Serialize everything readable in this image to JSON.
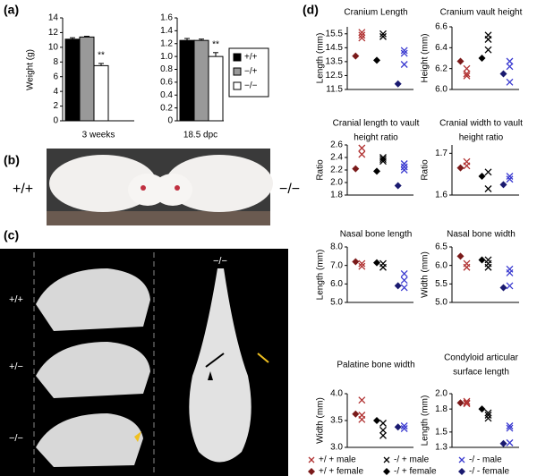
{
  "panel_labels": [
    "(a)",
    "(b)",
    "(c)",
    "(d)"
  ],
  "weight": {
    "legend": [
      {
        "name": "+/+",
        "color": "#000000"
      },
      {
        "name": "−/+",
        "color": "#999999"
      },
      {
        "name": "−/−",
        "color": "#ffffff"
      }
    ],
    "ylabel": "Weight (g)",
    "charts": [
      {
        "type": "bar",
        "xlabel": "3 weeks",
        "values": [
          11.1,
          11.4,
          7.5
        ],
        "errors": [
          0.2,
          0.1,
          0.3
        ],
        "annotation": "**",
        "ylim": [
          0,
          14
        ],
        "yticks": [
          0,
          2,
          4,
          6,
          8,
          10,
          12,
          14
        ]
      },
      {
        "type": "bar",
        "xlabel": "18.5 dpc",
        "values": [
          1.25,
          1.25,
          1.0
        ],
        "errors": [
          0.03,
          0.02,
          0.06
        ],
        "annotation": "**",
        "ylim": [
          0,
          1.6
        ],
        "yticks": [
          0,
          0.2,
          0.4,
          0.6,
          0.8,
          {
            "value": 1,
            "label": "1.0"
          },
          1.2,
          1.4,
          1.6
        ]
      }
    ]
  },
  "mice_photo": {
    "left_label": "+/+",
    "right_label": "−/−"
  },
  "skull_photo": {
    "labels": [
      "+/+",
      "+/−",
      "−/−"
    ],
    "top_label": "−/−"
  },
  "cranial": {
    "legend": [
      {
        "name": "+/ + male",
        "color": "#b03030",
        "marker": "cross"
      },
      {
        "name": "-/ + male",
        "color": "#000000",
        "marker": "cross"
      },
      {
        "name": "-/ - male",
        "color": "#3a3ad0",
        "marker": "cross"
      },
      {
        "name": "+/ + female",
        "color": "#7a1a1a",
        "marker": "diamond"
      },
      {
        "name": "-/ + female",
        "color": "#000000",
        "marker": "diamond"
      },
      {
        "name": "-/ - female",
        "color": "#1a1a70",
        "marker": "diamond"
      }
    ],
    "charts": [
      {
        "type": "scatter",
        "title": [
          "Cranium Length"
        ],
        "ylabel": "Length (mm)",
        "ylim": [
          11.5,
          16.0
        ],
        "yticks": [
          11.5,
          12.5,
          13.5,
          14.5,
          15.5
        ],
        "series": [
          {
            "values": [
              15.6,
              15.2,
              15.4
            ]
          },
          {
            "values": [
              15.5,
              15.3
            ]
          },
          {
            "values": [
              14.3,
              14.1,
              13.3
            ]
          },
          {
            "values": [
              13.9
            ]
          },
          {
            "values": [
              13.6
            ]
          },
          {
            "values": [
              11.9
            ]
          }
        ]
      },
      {
        "type": "scatter",
        "title": [
          "Cranium vault height"
        ],
        "ylabel": "Height (mm)",
        "ylim": [
          6.0,
          6.6
        ],
        "yticks": [
          {
            "value": 6,
            "label": "6.0"
          },
          6.2,
          6.4,
          6.6
        ],
        "series": [
          {
            "values": [
              6.2,
              6.15,
              6.13
            ]
          },
          {
            "values": [
              6.52,
              6.48,
              6.38
            ]
          },
          {
            "values": [
              6.27,
              6.22,
              6.07
            ]
          },
          {
            "values": [
              6.27
            ]
          },
          {
            "values": [
              6.3
            ]
          },
          {
            "values": [
              6.15
            ]
          }
        ]
      },
      {
        "type": "scatter",
        "title": [
          "Cranial length to vault",
          "height ratio"
        ],
        "ylabel": "Ratio",
        "ylim": [
          1.8,
          2.6
        ],
        "yticks": [
          1.8,
          {
            "value": 2,
            "label": "2.0"
          },
          2.2,
          2.4,
          2.6
        ],
        "series": [
          {
            "values": [
              2.55,
              2.45
            ]
          },
          {
            "values": [
              2.4,
              2.37,
              2.34
            ]
          },
          {
            "values": [
              2.3,
              2.25,
              2.2
            ]
          },
          {
            "values": [
              2.22
            ]
          },
          {
            "values": [
              2.18
            ]
          },
          {
            "values": [
              1.95
            ]
          }
        ]
      },
      {
        "type": "scatter",
        "title": [
          "Cranial width to vault",
          "height ratio"
        ],
        "ylabel": "Ratio",
        "ylim": [
          1.6,
          1.72
        ],
        "yticks": [
          1.6,
          1.7
        ],
        "series": [
          {
            "values": [
              1.68,
              1.67
            ]
          },
          {
            "values": [
              1.655,
              1.615
            ]
          },
          {
            "values": [
              1.645,
              1.638
            ]
          },
          {
            "values": [
              1.665
            ]
          },
          {
            "values": [
              1.645
            ]
          },
          {
            "values": [
              1.625
            ]
          }
        ]
      },
      {
        "type": "scatter",
        "title": [
          "Nasal bone length"
        ],
        "ylabel": "Length (mm)",
        "ylim": [
          5.0,
          8.0
        ],
        "yticks": [
          {
            "value": 5,
            "label": "5.0"
          },
          {
            "value": 6,
            "label": "6.0"
          },
          {
            "value": 7,
            "label": "7.0"
          },
          {
            "value": 8,
            "label": "8.0"
          }
        ],
        "series": [
          {
            "values": [
              7.1,
              6.95
            ]
          },
          {
            "values": [
              7.1,
              6.9
            ]
          },
          {
            "values": [
              6.55,
              6.2,
              5.8
            ]
          },
          {
            "values": [
              7.2
            ]
          },
          {
            "values": [
              7.15
            ]
          },
          {
            "values": [
              5.9
            ]
          }
        ]
      },
      {
        "type": "scatter",
        "title": [
          "Nasal bone width"
        ],
        "ylabel": "Width (mm)",
        "ylim": [
          5.0,
          6.5
        ],
        "yticks": [
          {
            "value": 5,
            "label": "5.0"
          },
          5.5,
          {
            "value": 6,
            "label": "6.0"
          },
          6.5
        ],
        "series": [
          {
            "values": [
              6.05,
              5.95
            ]
          },
          {
            "values": [
              6.15,
              6.05,
              5.95
            ]
          },
          {
            "values": [
              5.9,
              5.8,
              5.45
            ]
          },
          {
            "values": [
              6.25
            ]
          },
          {
            "values": [
              6.15
            ]
          },
          {
            "values": [
              5.4
            ]
          }
        ]
      },
      {
        "type": "scatter",
        "title": [
          "Palatine bone width"
        ],
        "ylabel": "Width (mm)",
        "ylim": [
          3.0,
          4.0
        ],
        "yticks": [
          {
            "value": 3,
            "label": "3.0"
          },
          3.5,
          {
            "value": 4,
            "label": "4.0"
          }
        ],
        "series": [
          {
            "values": [
              3.88,
              3.6,
              3.52
            ]
          },
          {
            "values": [
              3.45,
              3.32,
              3.22
            ]
          },
          {
            "values": [
              3.4,
              3.35
            ]
          },
          {
            "values": [
              3.62
            ]
          },
          {
            "values": [
              3.5
            ]
          },
          {
            "values": [
              3.38
            ]
          }
        ]
      },
      {
        "type": "scatter",
        "title": [
          "Condyloid articular",
          "surface length"
        ],
        "ylabel": "Length (mm)",
        "ylim": [
          1.3,
          2.0
        ],
        "yticks": [
          1.3,
          1.5,
          1.8,
          {
            "value": 2,
            "label": "2.0"
          }
        ],
        "series": [
          {
            "values": [
              1.9,
              1.88,
              1.87
            ]
          },
          {
            "values": [
              1.75,
              1.72,
              1.68
            ]
          },
          {
            "values": [
              1.58,
              1.55,
              1.36
            ]
          },
          {
            "values": [
              1.88
            ]
          },
          {
            "values": [
              1.8
            ]
          },
          {
            "values": [
              1.35
            ]
          }
        ]
      }
    ]
  }
}
